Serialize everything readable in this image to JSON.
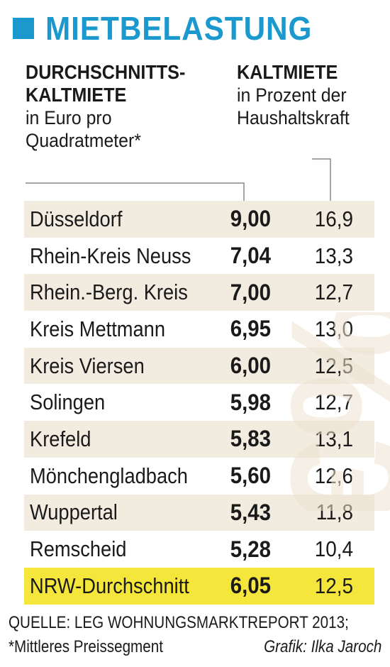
{
  "title": "MIETBELASTUNG",
  "header_left": {
    "bold_line1": "DURCHSCHNITTS-",
    "bold_line2": "KALTMIETE",
    "line3": "in Euro pro",
    "line4": "Quadratmeter*"
  },
  "header_right": {
    "bold_line1": "KALTMIETE",
    "line2": "in Prozent der",
    "line3": "Haushaltskraft"
  },
  "colors": {
    "accent": "#1b99cf",
    "row_shade": "#f2ebe0",
    "highlight": "#f5e63c",
    "watermark": "#efe3d0"
  },
  "watermark_text": "€%",
  "chart_data": {
    "type": "table",
    "title": "MIETBELASTUNG",
    "columns": [
      "",
      "DURCHSCHNITTS-KALTMIETE in Euro pro Quadratmeter*",
      "KALTMIETE in Prozent der Haushaltskraft"
    ],
    "rows": [
      {
        "name": "Düsseldorf",
        "rent": "9,00",
        "pct": "16,9"
      },
      {
        "name": "Rhein-Kreis Neuss",
        "rent": "7,04",
        "pct": "13,3"
      },
      {
        "name": "Rhein.-Berg. Kreis",
        "rent": "7,00",
        "pct": "12,7"
      },
      {
        "name": "Kreis Mettmann",
        "rent": "6,95",
        "pct": "13,0"
      },
      {
        "name": "Kreis Viersen",
        "rent": "6,00",
        "pct": "12,5"
      },
      {
        "name": "Solingen",
        "rent": "5,98",
        "pct": "12,7"
      },
      {
        "name": "Krefeld",
        "rent": "5,83",
        "pct": "13,1"
      },
      {
        "name": "Mönchengladbach",
        "rent": "5,60",
        "pct": "12,6"
      },
      {
        "name": "Wuppertal",
        "rent": "5,43",
        "pct": "11,8"
      },
      {
        "name": "Remscheid",
        "rent": "5,28",
        "pct": "10,4"
      },
      {
        "name": "NRW-Durchschnitt",
        "rent": "6,05",
        "pct": "12,5",
        "highlight": true
      }
    ]
  },
  "footer": {
    "source": "QUELLE: LEG WOHNUNGSMARKTREPORT 2013;",
    "note": "*Mittleres Preissegment",
    "credit": "Grafik: Ilka Jaroch"
  }
}
